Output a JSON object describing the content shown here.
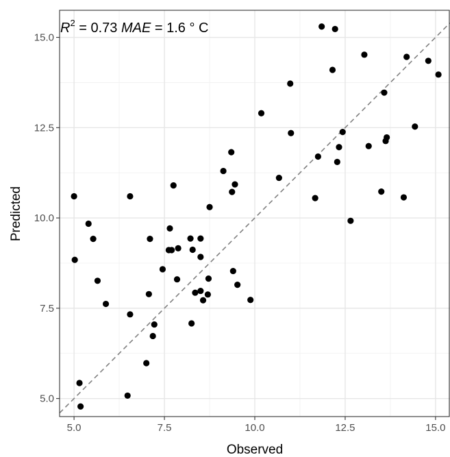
{
  "chart_data": {
    "type": "scatter",
    "xlabel": "Observed",
    "ylabel": "Predicted",
    "xlim": [
      4.6,
      15.4
    ],
    "ylim": [
      4.5,
      15.75
    ],
    "x_ticks": [
      5.0,
      7.5,
      10.0,
      12.5,
      15.0
    ],
    "x_tick_labels": [
      "5.0",
      "7.5",
      "10.0",
      "12.5",
      "15.0"
    ],
    "y_ticks": [
      5.0,
      7.5,
      10.0,
      12.5,
      15.0
    ],
    "y_tick_labels": [
      "5.0",
      "7.5",
      "10.0",
      "12.5",
      "15.0"
    ],
    "grid": true,
    "reference_line": "y = x (dashed)",
    "annotation": {
      "r2_symbol": "R",
      "r2_exponent": "2",
      "r2_value": " = 0.73 ",
      "mae_symbol": "MAE",
      "mae_value": " = 1.6 ° C"
    },
    "points": [
      [
        5.0,
        10.6
      ],
      [
        5.02,
        8.84
      ],
      [
        5.15,
        5.43
      ],
      [
        5.18,
        4.78
      ],
      [
        5.4,
        9.84
      ],
      [
        5.53,
        9.42
      ],
      [
        5.65,
        8.26
      ],
      [
        5.88,
        7.62
      ],
      [
        6.48,
        5.08
      ],
      [
        6.55,
        10.6
      ],
      [
        6.55,
        7.33
      ],
      [
        7.0,
        5.98
      ],
      [
        7.07,
        7.89
      ],
      [
        7.1,
        9.42
      ],
      [
        7.18,
        6.73
      ],
      [
        7.22,
        7.05
      ],
      [
        7.45,
        8.58
      ],
      [
        7.62,
        9.11
      ],
      [
        7.65,
        9.71
      ],
      [
        7.7,
        9.11
      ],
      [
        7.75,
        10.9
      ],
      [
        7.85,
        8.3
      ],
      [
        7.88,
        9.16
      ],
      [
        8.22,
        9.43
      ],
      [
        8.25,
        7.08
      ],
      [
        8.28,
        9.12
      ],
      [
        8.35,
        7.93
      ],
      [
        8.5,
        8.92
      ],
      [
        8.5,
        9.43
      ],
      [
        8.5,
        7.98
      ],
      [
        8.57,
        7.72
      ],
      [
        8.7,
        7.88
      ],
      [
        8.72,
        8.32
      ],
      [
        8.75,
        10.3
      ],
      [
        9.13,
        11.3
      ],
      [
        9.35,
        11.82
      ],
      [
        9.37,
        10.72
      ],
      [
        9.4,
        8.53
      ],
      [
        9.45,
        10.93
      ],
      [
        9.52,
        8.15
      ],
      [
        9.88,
        7.73
      ],
      [
        10.18,
        12.9
      ],
      [
        10.67,
        11.11
      ],
      [
        10.98,
        13.72
      ],
      [
        11.0,
        12.35
      ],
      [
        11.67,
        10.55
      ],
      [
        11.75,
        11.7
      ],
      [
        11.85,
        15.3
      ],
      [
        12.15,
        14.1
      ],
      [
        12.22,
        15.23
      ],
      [
        12.28,
        11.55
      ],
      [
        12.33,
        11.96
      ],
      [
        12.43,
        12.38
      ],
      [
        12.65,
        9.92
      ],
      [
        13.03,
        14.52
      ],
      [
        13.15,
        11.99
      ],
      [
        13.5,
        10.73
      ],
      [
        13.58,
        13.47
      ],
      [
        13.62,
        12.13
      ],
      [
        13.65,
        12.23
      ],
      [
        14.12,
        10.57
      ],
      [
        14.2,
        14.46
      ],
      [
        14.43,
        12.53
      ],
      [
        14.8,
        14.35
      ],
      [
        15.08,
        13.97
      ]
    ]
  }
}
